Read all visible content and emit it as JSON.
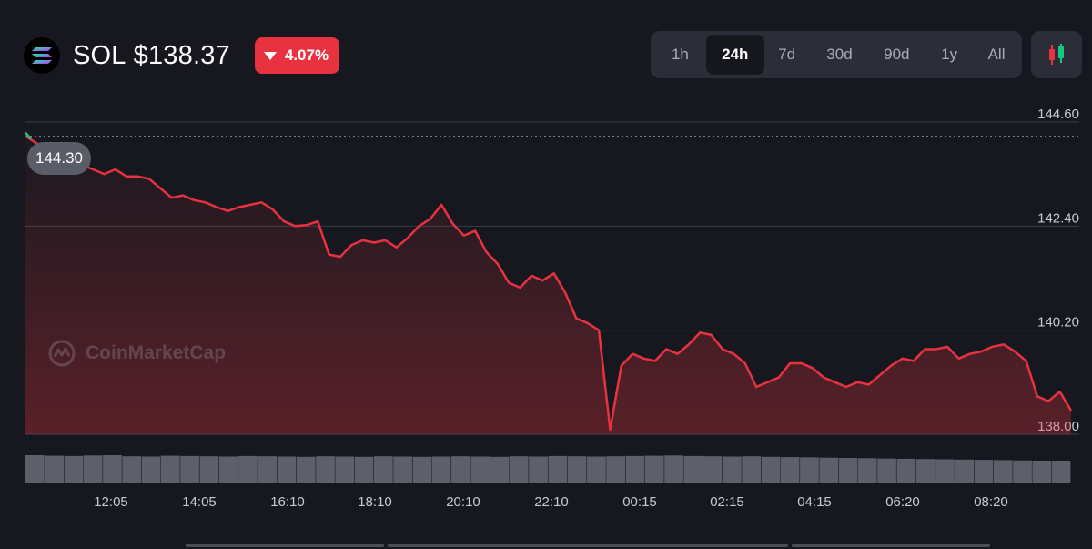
{
  "header": {
    "symbol": "SOL",
    "price": "$138.37",
    "change": "4.07%"
  },
  "ranges": [
    "1h",
    "24h",
    "7d",
    "30d",
    "90d",
    "1y",
    "All"
  ],
  "selected_range": "24h",
  "icons": {
    "logo": "solana-logo-icon",
    "change": "triangle-down-icon",
    "chart_toggle": "candlestick-icon",
    "watermark": "coinmarketcap-logo-icon"
  },
  "watermark": "CoinMarketCap",
  "start_price_label": "144.30",
  "colors": {
    "background": "#17181f",
    "line": "#e8323f",
    "badge": "#e8323f",
    "candle_up": "#16c784",
    "candle_down": "#e8323f"
  },
  "chart_data": {
    "type": "area",
    "title": "",
    "xlabel": "",
    "ylabel": "",
    "x_ticks": [
      "12:05",
      "14:05",
      "16:10",
      "18:10",
      "20:10",
      "22:10",
      "00:15",
      "02:15",
      "04:15",
      "06:20",
      "08:20"
    ],
    "y_ticks": [
      "144.60",
      "142.40",
      "140.20",
      "138.00"
    ],
    "ylim": [
      138.0,
      144.6
    ],
    "reference_line": 144.3,
    "grid": true,
    "series": [
      {
        "values": [
          144.3,
          144.15,
          143.98,
          144.08,
          143.95,
          143.7,
          143.6,
          143.5,
          143.6,
          143.45,
          143.45,
          143.4,
          143.2,
          143.0,
          143.05,
          142.95,
          142.9,
          142.8,
          142.72,
          142.8,
          142.85,
          142.9,
          142.75,
          142.5,
          142.4,
          142.42,
          142.5,
          141.8,
          141.75,
          142.0,
          142.1,
          142.05,
          142.1,
          141.95,
          142.15,
          142.4,
          142.55,
          142.85,
          142.45,
          142.2,
          142.3,
          141.85,
          141.6,
          141.2,
          141.1,
          141.35,
          141.25,
          141.4,
          141.0,
          140.45,
          140.35,
          140.2,
          138.1,
          139.45,
          139.7,
          139.6,
          139.55,
          139.8,
          139.7,
          139.9,
          140.15,
          140.1,
          139.8,
          139.7,
          139.5,
          139.0,
          139.1,
          139.2,
          139.5,
          139.5,
          139.4,
          139.2,
          139.1,
          139.0,
          139.1,
          139.05,
          139.25,
          139.45,
          139.6,
          139.55,
          139.8,
          139.8,
          139.85,
          139.6,
          139.7,
          139.75,
          139.85,
          139.9,
          139.75,
          139.55,
          138.8,
          138.7,
          138.9,
          138.5
        ]
      }
    ],
    "volume": [
      1.0,
      0.98,
      0.97,
      0.99,
      1.0,
      0.96,
      0.95,
      0.98,
      0.97,
      0.96,
      0.95,
      0.97,
      0.96,
      0.95,
      0.94,
      0.96,
      0.95,
      0.94,
      0.96,
      0.95,
      0.94,
      0.95,
      0.96,
      0.95,
      0.94,
      0.96,
      0.95,
      0.97,
      0.96,
      0.95,
      0.96,
      0.97,
      0.98,
      0.99,
      0.97,
      0.96,
      0.95,
      0.96,
      0.94,
      0.93,
      0.92,
      0.91,
      0.9,
      0.89,
      0.88,
      0.87,
      0.86,
      0.85,
      0.84,
      0.83,
      0.82,
      0.81,
      0.8,
      0.8
    ]
  }
}
